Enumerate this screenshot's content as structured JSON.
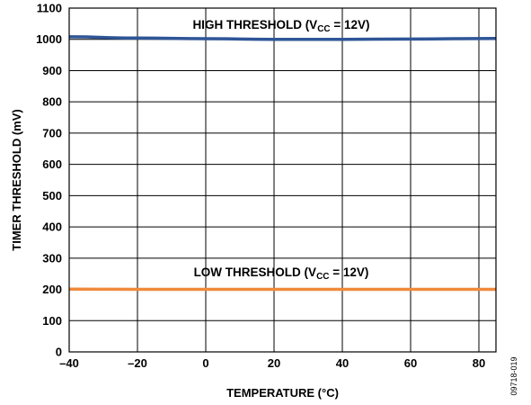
{
  "chart_data": {
    "type": "line",
    "xlabel": "TEMPERATURE (°C)",
    "ylabel": "TIMER THRESHOLD (mV)",
    "xlim": [
      -40,
      85
    ],
    "ylim": [
      0,
      1100
    ],
    "x_ticks": [
      "–40",
      "–20",
      "0",
      "20",
      "40",
      "60",
      "80"
    ],
    "x_tick_values": [
      -40,
      -20,
      0,
      20,
      40,
      60,
      80
    ],
    "y_ticks": [
      "0",
      "100",
      "200",
      "300",
      "400",
      "500",
      "600",
      "700",
      "800",
      "900",
      "1000",
      "1100"
    ],
    "y_tick_values": [
      0,
      100,
      200,
      300,
      400,
      500,
      600,
      700,
      800,
      900,
      1000,
      1100
    ],
    "grid": true,
    "series": [
      {
        "name": "HIGH THRESHOLD (VCC = 12V)",
        "color": "#2e5597",
        "x": [
          -40,
          -20,
          0,
          20,
          40,
          60,
          85
        ],
        "y": [
          1008,
          1004,
          1002,
          1000,
          1000,
          1001,
          1003
        ]
      },
      {
        "name": "LOW THRESHOLD (VCC = 12V)",
        "color": "#f08a3c",
        "x": [
          -40,
          -20,
          0,
          20,
          40,
          60,
          85
        ],
        "y": [
          201,
          200,
          200,
          200,
          200,
          200,
          200
        ]
      }
    ],
    "annotations": {
      "high_prefix": "HIGH THRESHOLD (V",
      "low_prefix": "LOW THRESHOLD (V",
      "subscript": "CC",
      "suffix": " = 12V)"
    },
    "figure_id": "09718-019"
  }
}
